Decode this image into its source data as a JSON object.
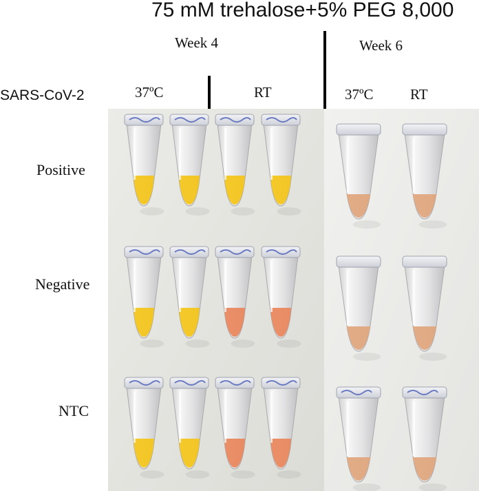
{
  "title": "75 mM trehalose+5% PEG 8,000",
  "weeks": [
    "Week 4",
    "Week 6"
  ],
  "row_header": "SARS-CoV-2",
  "conditions": {
    "week4": [
      "37ºC",
      "RT"
    ],
    "week6": [
      "37ºC",
      "RT"
    ]
  },
  "rows": [
    "Positive",
    "Negative",
    "NTC"
  ],
  "colors": {
    "yellow": "#f4c417",
    "orange": "#e8855a",
    "tan": "#e0a57c",
    "background_left": "#e7e7e3",
    "background_right": "#ededeb",
    "cap_ink": "#4a5fb8"
  },
  "tubes": [
    {
      "row": "Positive",
      "week": "Week 4",
      "condition": "37ºC",
      "color": "yellow"
    },
    {
      "row": "Positive",
      "week": "Week 4",
      "condition": "37ºC",
      "color": "yellow"
    },
    {
      "row": "Positive",
      "week": "Week 4",
      "condition": "RT",
      "color": "yellow"
    },
    {
      "row": "Positive",
      "week": "Week 4",
      "condition": "RT",
      "color": "yellow"
    },
    {
      "row": "Positive",
      "week": "Week 6",
      "condition": "37ºC",
      "color": "tan"
    },
    {
      "row": "Positive",
      "week": "Week 6",
      "condition": "RT",
      "color": "tan"
    },
    {
      "row": "Negative",
      "week": "Week 4",
      "condition": "37ºC",
      "color": "yellow"
    },
    {
      "row": "Negative",
      "week": "Week 4",
      "condition": "37ºC",
      "color": "yellow"
    },
    {
      "row": "Negative",
      "week": "Week 4",
      "condition": "RT",
      "color": "orange"
    },
    {
      "row": "Negative",
      "week": "Week 4",
      "condition": "RT",
      "color": "orange"
    },
    {
      "row": "Negative",
      "week": "Week 6",
      "condition": "37ºC",
      "color": "tan"
    },
    {
      "row": "Negative",
      "week": "Week 6",
      "condition": "RT",
      "color": "tan"
    },
    {
      "row": "NTC",
      "week": "Week 4",
      "condition": "37ºC",
      "color": "yellow"
    },
    {
      "row": "NTC",
      "week": "Week 4",
      "condition": "37ºC",
      "color": "yellow"
    },
    {
      "row": "NTC",
      "week": "Week 4",
      "condition": "RT",
      "color": "orange"
    },
    {
      "row": "NTC",
      "week": "Week 4",
      "condition": "RT",
      "color": "orange"
    },
    {
      "row": "NTC",
      "week": "Week 6",
      "condition": "37ºC",
      "color": "tan"
    },
    {
      "row": "NTC",
      "week": "Week 6",
      "condition": "RT",
      "color": "tan"
    }
  ]
}
